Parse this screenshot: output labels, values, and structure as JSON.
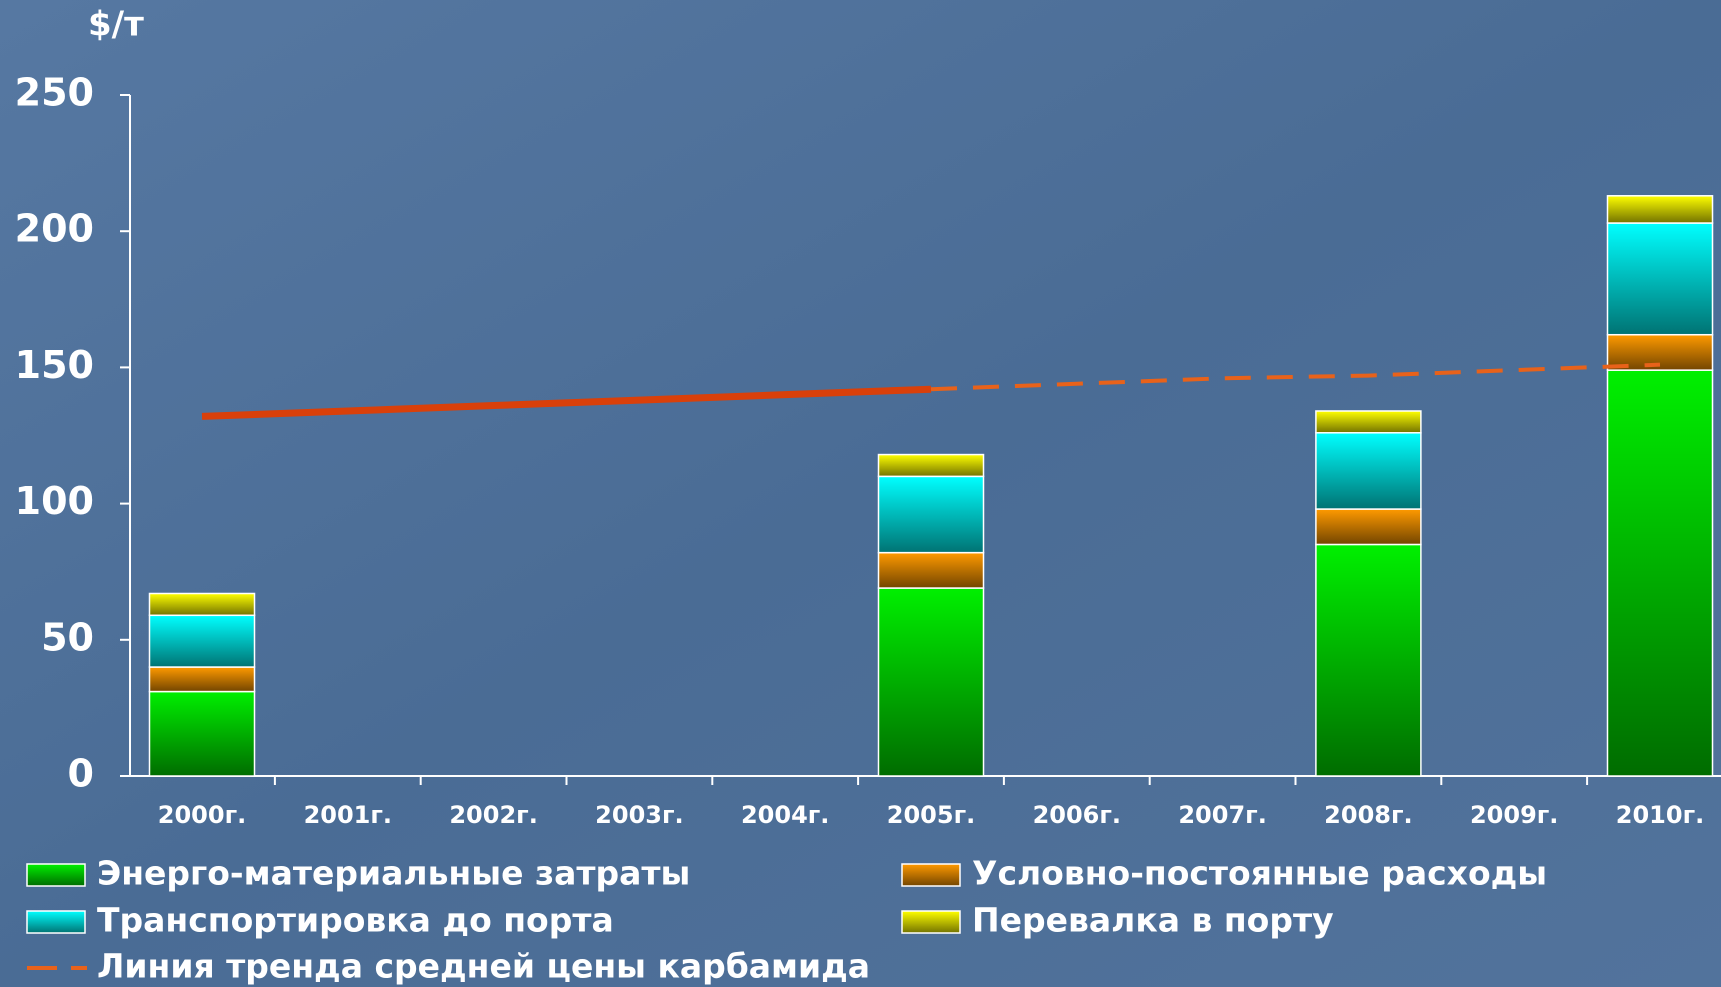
{
  "chart_data": {
    "type": "stacked_bar_line",
    "ylabel": "$/т",
    "categories": [
      "2000г.",
      "2001г.",
      "2002г.",
      "2003г.",
      "2004г.",
      "2005г.",
      "2006г.",
      "2007г.",
      "2008г.",
      "2009г.",
      "2010г."
    ],
    "series": [
      {
        "name": "Энерго-материальные затраты",
        "color": "#00f000",
        "values": [
          31,
          null,
          null,
          null,
          null,
          69,
          null,
          null,
          85,
          null,
          149
        ]
      },
      {
        "name": "Условно-постоянные расходы",
        "color": "#ff9a00",
        "values": [
          9,
          null,
          null,
          null,
          null,
          13,
          null,
          null,
          13,
          null,
          13
        ]
      },
      {
        "name": "Транспортировка до порта",
        "color": "#00ffff",
        "values": [
          19,
          null,
          null,
          null,
          null,
          28,
          null,
          null,
          28,
          null,
          41
        ]
      },
      {
        "name": "Перевалка в порту",
        "color": "#ffff00",
        "values": [
          8,
          null,
          null,
          null,
          null,
          8,
          null,
          null,
          8,
          null,
          10
        ]
      }
    ],
    "trend": {
      "name": "Линия тренда средней цены карбамида",
      "color": "#d9400a",
      "dashed_after": "2005г.",
      "values": [
        132,
        134,
        136,
        138,
        140,
        142,
        144,
        146,
        147,
        149,
        151
      ]
    },
    "ylim": [
      0,
      250
    ],
    "yticks": [
      0,
      50,
      100,
      150,
      200,
      250
    ]
  }
}
